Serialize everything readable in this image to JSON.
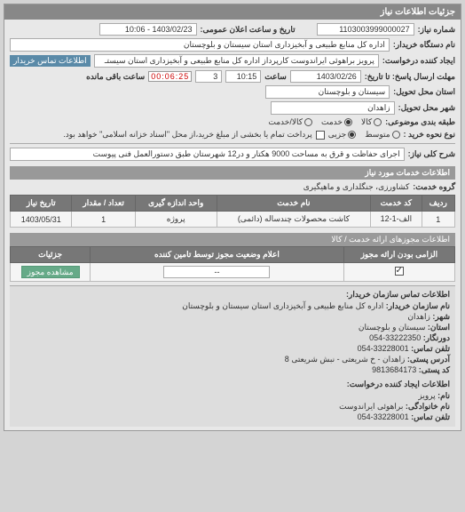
{
  "panel_title": "جزئیات اطلاعات نیاز",
  "need_number_label": "شماره نیاز:",
  "need_number": "1103003999000027",
  "announce_dt_label": "تاریخ و ساعت اعلان عمومی:",
  "announce_dt": "1403/02/23 - 10:06",
  "buyer_org_label": "نام دستگاه خریدار:",
  "buyer_org": "اداره کل منابع طبیعی و آبخیزداری استان سیستان و بلوچستان",
  "requester_label": "ایجاد کننده درخواست:",
  "requester": "پرویز براهوئی ایراندوست کارپرداز اداره کل منابع طبیعی و آبخیزداری استان سیستـ",
  "buyer_contact_link": "اطلاعات تماس خریدار",
  "deadline_label": "مهلت ارسال پاسخ: تا تاریخ:",
  "deadline_date": "1403/02/26",
  "time_label": "ساعت",
  "deadline_time": "10:15",
  "deadline_day": "3",
  "timer": "00:06:25",
  "time_remaining_label": "ساعت باقی مانده",
  "delivery_province_label": "استان محل تحویل:",
  "delivery_province": "سیستان و بلوچستان",
  "delivery_city_label": "شهر محل تحویل:",
  "delivery_city": "زاهدان",
  "budget_class_label": "طبقه بندی موضوعی:",
  "budget_options": {
    "goods": "کالا",
    "service": "خدمت",
    "goods_service": "کالا/خدمت"
  },
  "budget_selected": "service",
  "buy_type_label": "نوع نحوه خرید :",
  "buy_options": {
    "all": "متوسط",
    "partial": "جزیی"
  },
  "buy_selected": "partial",
  "buy_note": "پرداخت تمام یا بخشی از مبلغ خرید،از محل \"اسناد خزانه اسلامی\" خواهد بود.",
  "title_label": "شرح کلی نیاز:",
  "title_text": "اجرای حفاظت و قرق به مساحت 9000 هکتار و در12 شهرستان طبق دستورالعمل فنی پیوست",
  "services_section": "اطلاعات خدمات مورد نیاز",
  "service_group_label": "گروه خدمت:",
  "service_group": "کشاورزی، جنگلداری و ماهیگیری",
  "table_headers": [
    "ردیف",
    "کد خدمت",
    "نام خدمت",
    "واحد اندازه گیری",
    "تعداد / مقدار",
    "تاریخ نیاز"
  ],
  "table_row": [
    "1",
    "الف-1-12",
    "کاشت محصولات چندساله (دائمی)",
    "پروژه",
    "1",
    "1403/05/31"
  ],
  "auth_section": "اطلاعات مجوزهای ارائه خدمت / کالا",
  "auth_headers": [
    "الزامی بودن ارائه مجوز",
    "اعلام وضعیت مجوز توسط تامین کننده",
    "جزئیات"
  ],
  "auth_row": {
    "required_checked": true,
    "status": "--",
    "details_btn": "مشاهده مجوز"
  },
  "contact_org_title": "اطلاعات تماس سازمان خریدار:",
  "contact_lines": [
    {
      "lbl": "نام سازمان خریدار:",
      "val": "اداره کل منابع طبیعی و آبخیزداری استان سیستان و بلوچستان"
    },
    {
      "lbl": "شهر:",
      "val": "زاهدان"
    },
    {
      "lbl": "استان:",
      "val": "سیستان و بلوچستان"
    },
    {
      "lbl": "دورنگار:",
      "val": "33222350-054"
    },
    {
      "lbl": "تلفن تماس:",
      "val": "33228001-054"
    },
    {
      "lbl": "آدرس پستی:",
      "val": "زاهدان - خ شریعتی - نبش شریعتی 8"
    },
    {
      "lbl": "کد پستی:",
      "val": "9813684173"
    }
  ],
  "requester_title": "اطلاعات ایجاد کننده درخواست:",
  "requester_lines": [
    {
      "lbl": "نام:",
      "val": "پرویز"
    },
    {
      "lbl": "نام خانوادگی:",
      "val": "براهوئی ایراندوست"
    },
    {
      "lbl": "تلفن تماس:",
      "val": "33228001-054"
    }
  ]
}
